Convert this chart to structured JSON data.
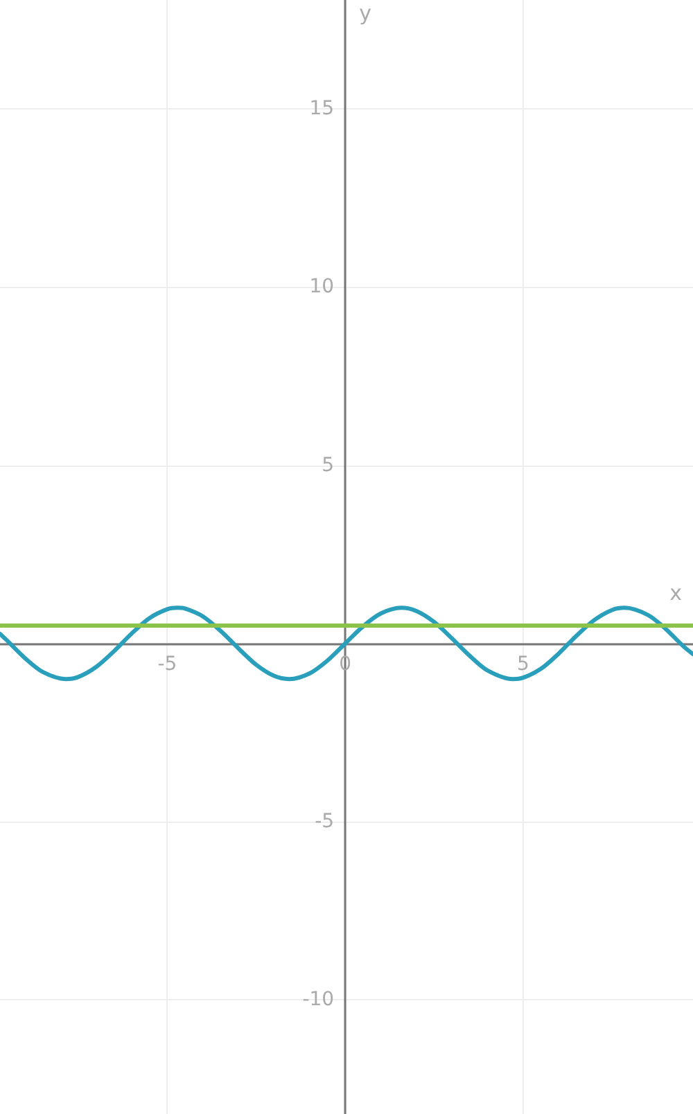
{
  "chart_data": {
    "type": "line",
    "xlabel": "x",
    "ylabel": "y",
    "xlim": [
      -9.7,
      9.77
    ],
    "ylim": [
      -13.2,
      18.05
    ],
    "xticks": [
      -5,
      0,
      5
    ],
    "yticks": [
      -10,
      -5,
      {
        "value": 0,
        "label": null
      },
      5,
      10,
      15
    ],
    "grid": true,
    "marker": "none",
    "line_style": "solid",
    "series": [
      {
        "color": "#2a9fbc",
        "x": [
          -9.7,
          -9.5,
          -9,
          -8.5,
          -7.85,
          -7.5,
          -7,
          -6.5,
          -6,
          -5.5,
          -5,
          -4.71,
          -4.5,
          -4,
          -3.5,
          -3,
          -2.5,
          -2,
          -1.57,
          -1,
          -0.5,
          0,
          0.5,
          1,
          1.57,
          2,
          2.5,
          3,
          3.5,
          4,
          4.71,
          5,
          5.5,
          6,
          6.5,
          7,
          7.5,
          7.85,
          8.5,
          9,
          9.5,
          9.77
        ],
        "values": [
          0.27,
          0.08,
          -0.41,
          -0.8,
          -1,
          -0.94,
          -0.66,
          -0.22,
          0.28,
          0.71,
          0.96,
          1,
          0.98,
          0.76,
          0.35,
          -0.14,
          -0.6,
          -0.91,
          -1,
          -0.84,
          -0.48,
          0,
          0.48,
          0.84,
          1,
          0.91,
          0.6,
          0.14,
          -0.35,
          -0.76,
          -1,
          -0.96,
          -0.71,
          -0.28,
          0.22,
          0.66,
          0.94,
          1,
          0.8,
          0.41,
          -0.08,
          -0.3
        ]
      },
      {
        "color": "#8bc34a",
        "x": [
          -9.7,
          9.77
        ],
        "values": [
          0.5,
          0.5
        ]
      }
    ]
  }
}
